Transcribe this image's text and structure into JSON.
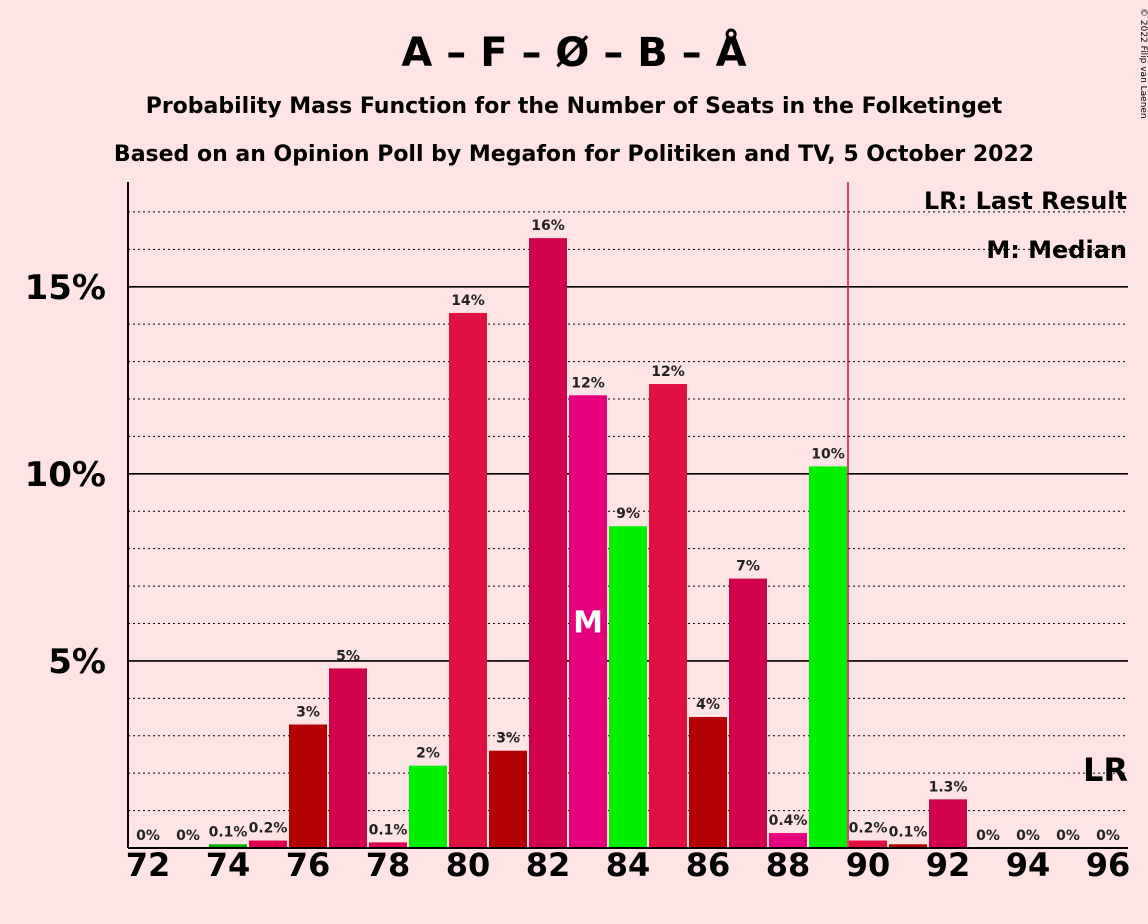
{
  "chart_data": {
    "type": "bar",
    "title": "A – F – Ø – B – Å",
    "subtitle_lines": [
      "Probability Mass Function for the Number of Seats in the Folketinget",
      "Based on an Opinion Poll by Megafon for Politiken and TV, 5 October 2022"
    ],
    "copyright": "© 2022 Filip van Laenen",
    "x_ticks": [
      "72",
      "74",
      "76",
      "78",
      "80",
      "82",
      "84",
      "86",
      "88",
      "90",
      "92",
      "94",
      "96"
    ],
    "y_ticks": [
      "5%",
      "10%",
      "15%"
    ],
    "y_tick_values": [
      5,
      10,
      15
    ],
    "y_minor_step": 1,
    "ylim": [
      0,
      17.8
    ],
    "xlim": [
      71.5,
      96.5
    ],
    "x": [
      72,
      73,
      74,
      75,
      76,
      77,
      78,
      79,
      80,
      81,
      82,
      83,
      84,
      85,
      86,
      87,
      88,
      89,
      90,
      91,
      92,
      93,
      94,
      95,
      96
    ],
    "values": [
      0,
      0,
      0.1,
      0.2,
      3.3,
      4.8,
      0.15,
      2.2,
      14.3,
      2.6,
      16.3,
      12.1,
      8.6,
      12.4,
      3.5,
      7.2,
      0.4,
      10.2,
      0.2,
      0.1,
      1.3,
      0,
      0,
      0,
      0
    ],
    "labels": [
      "0%",
      "0%",
      "0.1%",
      "0.2%",
      "3%",
      "5%",
      "0.1%",
      "2%",
      "14%",
      "3%",
      "16%",
      "12%",
      "9%",
      "12%",
      "4%",
      "7%",
      "0.4%",
      "10%",
      "0.2%",
      "0.1%",
      "1.3%",
      "0%",
      "0%",
      "0%",
      "0%"
    ],
    "colors": [
      "#000000",
      "#000000",
      "#00B100",
      "#E0004D",
      "#B30000",
      "#D0004A",
      "#E0004D",
      "#00F000",
      "#E01040",
      "#B30000",
      "#D0004A",
      "#E6007E",
      "#00F000",
      "#E01040",
      "#B30000",
      "#D0004A",
      "#E6007E",
      "#00F000",
      "#E01040",
      "#B30000",
      "#D0004A",
      "#E6007E",
      "#00F000",
      "#E01040",
      "#B30000"
    ],
    "median_seat": 83,
    "median_marker": "M",
    "last_result_seat": 90,
    "lr_marker": "LR",
    "last_result_line_color": "#C8004A",
    "legend": {
      "placement": "top-right",
      "entries": [
        "LR: Last Result",
        "M: Median"
      ]
    },
    "grid": true
  }
}
